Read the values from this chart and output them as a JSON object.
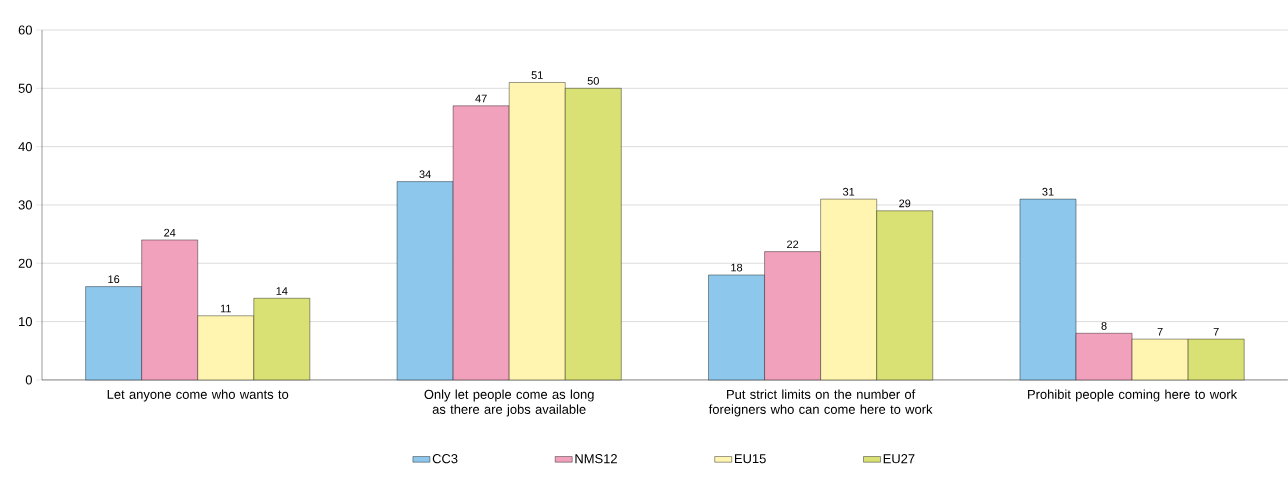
{
  "chart_data": {
    "type": "bar",
    "categories": [
      "Let anyone come who wants to",
      "Only let people come as long as there are jobs available",
      "Put strict limits on the number of foreigners who can come here to work",
      "Prohibit people coming here to work"
    ],
    "series": [
      {
        "name": "CC3",
        "color": "#8dc8ec",
        "values": [
          16,
          34,
          18,
          31
        ]
      },
      {
        "name": "NMS12",
        "color": "#f2a1bd",
        "values": [
          24,
          47,
          22,
          8
        ]
      },
      {
        "name": "EU15",
        "color": "#fff5b0",
        "values": [
          11,
          51,
          31,
          7
        ]
      },
      {
        "name": "EU27",
        "color": "#d9e174",
        "values": [
          14,
          50,
          29,
          7
        ]
      }
    ],
    "ylim": [
      0,
      60
    ],
    "yticks": [
      0,
      10,
      20,
      30,
      40,
      50,
      60
    ],
    "grid": "y",
    "legend": "bottom",
    "data_labels": true
  }
}
